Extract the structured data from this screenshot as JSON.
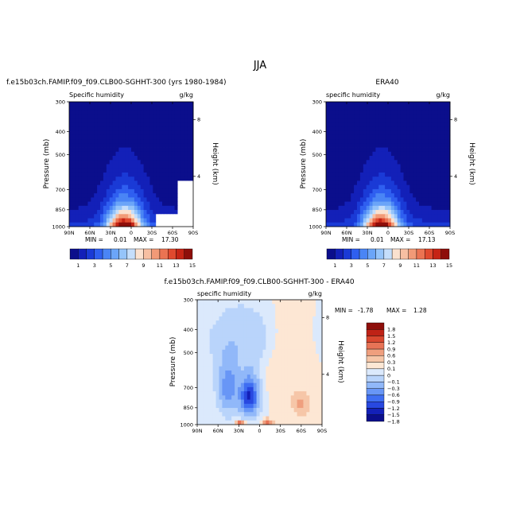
{
  "figure_title": "JJA",
  "colors": {
    "seq": [
      "#0b0e8c",
      "#1320b8",
      "#1a3ad6",
      "#2f5ff0",
      "#4a85f5",
      "#6ba5f8",
      "#95c4fa",
      "#c5defb",
      "#fbe1cf",
      "#f7bfa2",
      "#f29a77",
      "#eb7352",
      "#e0492e",
      "#c62415",
      "#8e0e0a"
    ],
    "div": [
      "#0b0e8c",
      "#1320b8",
      "#2848e0",
      "#3f6ef2",
      "#6896f6",
      "#91b8f9",
      "#b9d4fb",
      "#dbe9fc",
      "#fde7d4",
      "#f6c6a8",
      "#ef9f7e",
      "#e77356",
      "#d9472f",
      "#bf2216",
      "#8e0e0a"
    ]
  },
  "chart_data": [
    {
      "type": "heatmap",
      "title": "f.e15b03ch.FAMIP.f09_f09.CLB00-SGHHT-300 (yrs 1980-1984)",
      "left_label": "Specific humidity",
      "units": "g/kg",
      "ylabel": "Pressure (mb)",
      "y2label": "Height (km)",
      "x_ticks": [
        "90N",
        "60N",
        "30N",
        "0",
        "30S",
        "60S",
        "90S"
      ],
      "y_ticks": [
        "300",
        "400",
        "500",
        "700",
        "850",
        "1000"
      ],
      "y2_ticks": [
        "8",
        "4"
      ],
      "min_label": "MIN =",
      "min_value": "0.01",
      "max_label": "MAX =",
      "max_value": "17.30",
      "colorbar_labels": [
        "1",
        "3",
        "5",
        "7",
        "9",
        "11",
        "13",
        "15"
      ],
      "x_range": [
        90,
        -90
      ],
      "y_range": [
        300,
        1000
      ],
      "field": {
        "peak_lat": 10,
        "peak_value": 17.3,
        "mask": true
      }
    },
    {
      "type": "heatmap",
      "title": "ERA40",
      "left_label": "specific humidity",
      "units": "g/kg",
      "ylabel": "Pressure (mb)",
      "y2label": "Height (km)",
      "x_ticks": [
        "90N",
        "60N",
        "30N",
        "0",
        "30S",
        "60S",
        "90S"
      ],
      "y_ticks": [
        "300",
        "400",
        "500",
        "700",
        "850",
        "1000"
      ],
      "y2_ticks": [
        "8",
        "4"
      ],
      "min_label": "MIN =",
      "min_value": "0.01",
      "max_label": "MAX =",
      "max_value": "17.13",
      "colorbar_labels": [
        "1",
        "3",
        "5",
        "7",
        "9",
        "11",
        "13",
        "15"
      ],
      "x_range": [
        90,
        -90
      ],
      "y_range": [
        300,
        1000
      ],
      "field": {
        "peak_lat": 10,
        "peak_value": 17.13,
        "mask": false
      }
    },
    {
      "type": "heatmap",
      "title": "f.e15b03ch.FAMIP.f09_f09.CLB00-SGHHT-300 - ERA40",
      "left_label": "specific humidity",
      "units": "g/kg",
      "ylabel": "Pressure (mb)",
      "y2label": "Height (km)",
      "x_ticks": [
        "90N",
        "60N",
        "30N",
        "0",
        "30S",
        "60S",
        "90S"
      ],
      "y_ticks": [
        "300",
        "400",
        "500",
        "700",
        "850",
        "1000"
      ],
      "y2_ticks": [
        "8",
        "4"
      ],
      "min_label": "MIN =",
      "min_value": "-1.78",
      "max_label": "MAX =",
      "max_value": "1.28",
      "colorbar_labels": [
        "1.8",
        "1.5",
        "1.2",
        "0.9",
        "0.6",
        "0.3",
        "0.1",
        "0",
        "−0.1",
        "−0.3",
        "−0.6",
        "−0.9",
        "−1.2",
        "−1.5",
        "−1.8"
      ],
      "x_range": [
        90,
        -90
      ],
      "y_range": [
        300,
        1000
      ],
      "field": {
        "min_value": -1.78,
        "max_value": 1.28
      }
    }
  ]
}
